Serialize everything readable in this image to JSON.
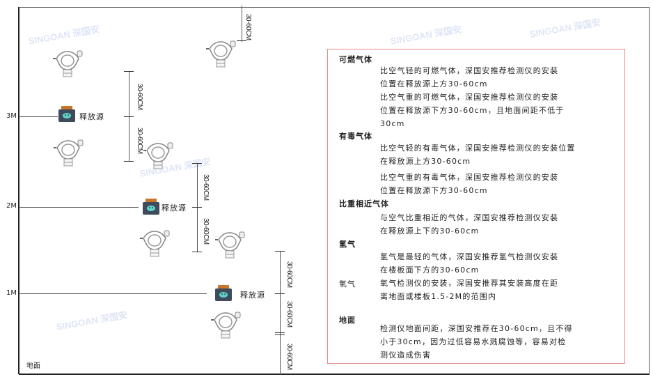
{
  "levels": {
    "m3": "3M",
    "m2": "2M",
    "m1": "1M",
    "ground": "地面"
  },
  "source_label": "释放源",
  "dimension_label": "30-60CM",
  "watermark": "SINGOAN 深国安",
  "info": {
    "flammable": {
      "title": "可燃气体",
      "p1": "比空气轻的可燃气体，深国安推荐检测仪的安装\n位置在释放源上方30-60cm",
      "p2": "比空气重的可燃气体，深国安推荐检测仪的安装\n位置在释放源下方30-60cm，且地面间距不低于\n30cm"
    },
    "toxic": {
      "title": "有毒气体",
      "p1": "比空气轻的有毒气体，深国安推荐检测仪的安装位置\n在释放源上方30-60cm",
      "p2": "比空气重的有毒气体，深国安推荐检测仪的安装\n位置在释放源下方30-60cm"
    },
    "similar": {
      "title": "比重相近气体",
      "p1": "与空气比重相近的气体，深国安推荐检测仪安装\n在释放源上下的30-60cm"
    },
    "hydrogen": {
      "title": "氢气",
      "p1": "氢气是最轻的气体，深国安推荐氢气检测仪安装\n在楼板面下方的30-60cm"
    },
    "oxygen": {
      "title": "氧气",
      "p1": "氧气检测仪的安装，深国安推荐其安装高度在距\n离地面或楼板1.5-2M的范围内"
    },
    "ground": {
      "title": "地面",
      "p1": "检测仪地面间距，深国安推荐在30-60cm，且不得\n小于30cm，因为过低容易水溅腐蚀等，容易对检\n测仪造成伤害"
    }
  },
  "colors": {
    "border": "#ee8888",
    "source_body": "#3d4b5c",
    "source_cap": "#c8762a",
    "source_face": "#5fd3c8"
  }
}
